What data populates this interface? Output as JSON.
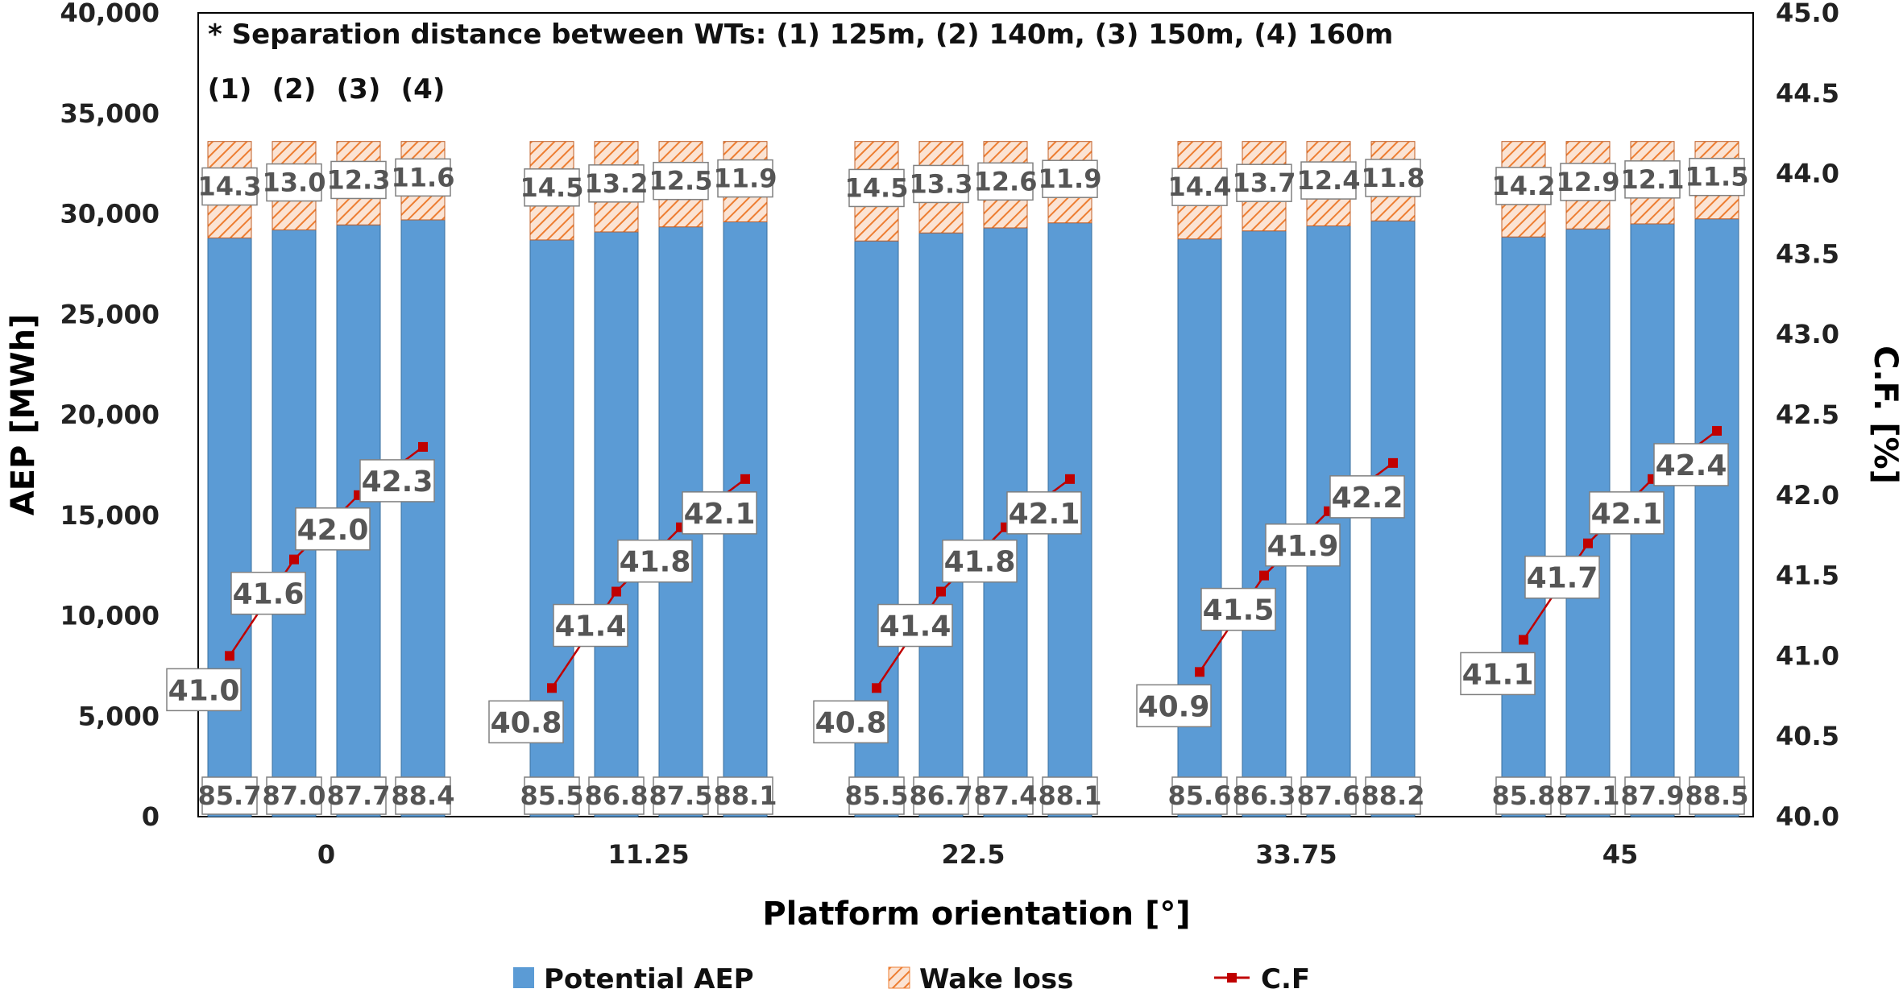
{
  "chart_data": {
    "type": "bar",
    "subtype": "stacked bar with line on secondary axis",
    "note": "* Separation distance between WTs: (1) 125m, (2) 140m, (3) 150m, (4) 160m",
    "bar_group_labels": [
      "(1)",
      "(2)",
      "(3)",
      "(4)"
    ],
    "categories": [
      "0",
      "11.25",
      "22.5",
      "33.75",
      "45"
    ],
    "xlabel": "Platform orientation [°]",
    "ylabel": "AEP [MWh]",
    "ylabel_right": "C.F. [%]",
    "ylim": [
      0,
      40000
    ],
    "ylim_right": [
      40.0,
      45.0
    ],
    "yticks": [
      "0",
      "5,000",
      "10,000",
      "15,000",
      "20,000",
      "25,000",
      "30,000",
      "35,000",
      "40,000"
    ],
    "yticks_right": [
      "40.0",
      "40.5",
      "41.0",
      "41.5",
      "42.0",
      "42.5",
      "43.0",
      "43.5",
      "44.0",
      "44.5",
      "45.0"
    ],
    "series": [
      {
        "name": "Potential AEP",
        "color": "#5B9BD5",
        "values": [
          [
            28800,
            29200,
            29450,
            29700
          ],
          [
            28700,
            29100,
            29350,
            29600
          ],
          [
            28650,
            29050,
            29300,
            29550
          ],
          [
            28750,
            29150,
            29400,
            29650
          ],
          [
            28850,
            29250,
            29500,
            29750
          ]
        ],
        "labels": [
          [
            "85.7",
            "87.0",
            "87.7",
            "88.4"
          ],
          [
            "85.5",
            "86.8",
            "87.5",
            "88.1"
          ],
          [
            "85.5",
            "86.7",
            "87.4",
            "88.1"
          ],
          [
            "85.6",
            "86.3",
            "87.6",
            "88.2"
          ],
          [
            "85.8",
            "87.1",
            "87.9",
            "88.5"
          ]
        ]
      },
      {
        "name": "Wake loss",
        "color": "#ED7D31",
        "values": [
          [
            4800,
            4400,
            4150,
            3900
          ],
          [
            4900,
            4500,
            4250,
            4000
          ],
          [
            4950,
            4550,
            4300,
            4050
          ],
          [
            4850,
            4450,
            4200,
            3950
          ],
          [
            4750,
            4350,
            4100,
            3850
          ]
        ],
        "labels": [
          [
            "14.3",
            "13.0",
            "12.3",
            "11.6"
          ],
          [
            "14.5",
            "13.2",
            "12.5",
            "11.9"
          ],
          [
            "14.5",
            "13.3",
            "12.6",
            "11.9"
          ],
          [
            "14.4",
            "13.7",
            "12.4",
            "11.8"
          ],
          [
            "14.2",
            "12.9",
            "12.1",
            "11.5"
          ]
        ]
      },
      {
        "name": "C.F",
        "color": "#C00000",
        "axis": "right",
        "values": [
          [
            41.0,
            41.6,
            42.0,
            42.3
          ],
          [
            40.8,
            41.4,
            41.8,
            42.1
          ],
          [
            40.8,
            41.4,
            41.8,
            42.1
          ],
          [
            40.9,
            41.5,
            41.9,
            42.2
          ],
          [
            41.1,
            41.7,
            42.1,
            42.4
          ]
        ],
        "labels": [
          [
            "41.0",
            "41.6",
            "42.0",
            "42.3"
          ],
          [
            "40.8",
            "41.4",
            "41.8",
            "42.1"
          ],
          [
            "40.8",
            "41.4",
            "41.8",
            "42.1"
          ],
          [
            "40.9",
            "41.5",
            "41.9",
            "42.2"
          ],
          [
            "41.1",
            "41.7",
            "42.1",
            "42.4"
          ]
        ]
      }
    ],
    "legend": {
      "position": "bottom",
      "items": [
        "Potential AEP",
        "Wake loss",
        "C.F"
      ]
    },
    "grid": false
  }
}
